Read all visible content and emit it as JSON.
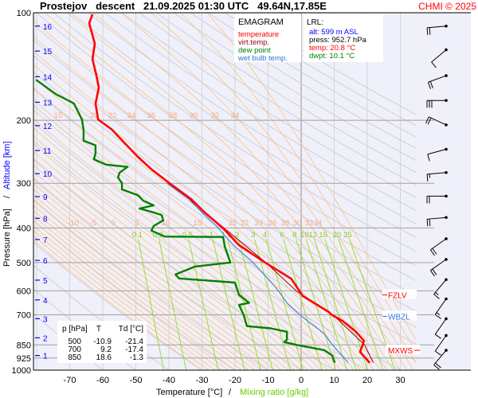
{
  "header": {
    "title": "Prostejov   descent   21.09.2025 01:30 UTC   49.64N,17.85E",
    "copyright": "CHMI © 2025"
  },
  "legend": {
    "title": "EMAGRAM",
    "items": [
      {
        "label": "temperature",
        "color": "#ff0000"
      },
      {
        "label": "virt.temp.",
        "color": "#a00000"
      },
      {
        "label": "dew point",
        "color": "#008000"
      },
      {
        "label": "wet bulb temp.",
        "color": "#3070e0"
      }
    ]
  },
  "lrl": {
    "title": "LRL:",
    "alt": "alt: 599 m ASL",
    "press": "press: 952.7 hPa",
    "temp": "temp: 20.8 °C",
    "dwpt": "dwpt: 10.1 °C"
  },
  "stats_table": {
    "headers": [
      "p [hPa]",
      "T",
      "Td [°C]"
    ],
    "rows": [
      [
        "500",
        "-10.9",
        "-21.4"
      ],
      [
        "700",
        "9.2",
        "-17.4"
      ],
      [
        "850",
        "18.6",
        "-1.3"
      ]
    ]
  },
  "chart_data": {
    "type": "line",
    "title": "Prostejov   descent   21.09.2025 01:30 UTC   49.64N,17.85E",
    "xlabel": "Temperature [°C]",
    "xlabel2": "Mixing ratio [g/kg]",
    "ylabel": "Pressure [hPa]",
    "ylabel2": "Altitude [km]",
    "xlim": [
      -81,
      33.7
    ],
    "ylim": [
      1000,
      100
    ],
    "y_scale": "log",
    "x_ticks": [
      -70,
      -60,
      -50,
      -40,
      -30,
      -20,
      -10,
      0,
      10,
      20,
      30
    ],
    "y_ticks": [
      100,
      200,
      300,
      400,
      500,
      600,
      700,
      850,
      925,
      1000
    ],
    "altitude_ticks": [
      {
        "km": "1",
        "p": 910
      },
      {
        "km": "2",
        "p": 812
      },
      {
        "km": "3",
        "p": 718
      },
      {
        "km": "4",
        "p": 636
      },
      {
        "km": "5",
        "p": 560
      },
      {
        "km": "6",
        "p": 493
      },
      {
        "km": "7",
        "p": 431
      },
      {
        "km": "8",
        "p": 376
      },
      {
        "km": "9",
        "p": 327
      },
      {
        "km": "10",
        "p": 282
      },
      {
        "km": "11",
        "p": 243
      },
      {
        "km": "12",
        "p": 207
      },
      {
        "km": "13",
        "p": 178
      },
      {
        "km": "14",
        "p": 151
      },
      {
        "km": "15",
        "p": 128
      },
      {
        "km": "16",
        "p": 109
      }
    ],
    "mixing_ratio_labels": [
      "0.1",
      "0.2",
      "0.5",
      "1",
      "1.5",
      "2",
      "3",
      "4",
      "6",
      "8",
      "10",
      "12",
      "15",
      "20",
      "25"
    ],
    "adiabat_labels_upper": [
      "15",
      "20",
      "22",
      "24",
      "26",
      "28",
      "30",
      "32",
      "34"
    ],
    "adiabat_labels_lower": [
      "-10",
      "-5",
      "0",
      "5",
      "10",
      "15",
      "20",
      "22",
      "24",
      "26",
      "28",
      "30",
      "32",
      "34"
    ],
    "series": [
      {
        "name": "temperature",
        "color": "#ff0000",
        "points": [
          [
            101,
            -63.1
          ],
          [
            107,
            -64.1
          ],
          [
            122,
            -62.4
          ],
          [
            135,
            -63.1
          ],
          [
            150,
            -61.9
          ],
          [
            162,
            -61.2
          ],
          [
            179.5,
            -62.2
          ],
          [
            199,
            -61.4
          ],
          [
            212,
            -57.3
          ],
          [
            232,
            -53.3
          ],
          [
            253,
            -49.4
          ],
          [
            274,
            -45.3
          ],
          [
            300,
            -39.8
          ],
          [
            332,
            -33.3
          ],
          [
            362,
            -29.2
          ],
          [
            401,
            -23.6
          ],
          [
            447,
            -18.8
          ],
          [
            500,
            -10.9
          ],
          [
            555,
            -3
          ],
          [
            620,
            0.5
          ],
          [
            688,
            8.4
          ],
          [
            700,
            9.2
          ],
          [
            728,
            12.5
          ],
          [
            781,
            16.6
          ],
          [
            828,
            19
          ],
          [
            850,
            18.6
          ],
          [
            889,
            17.8
          ],
          [
            948,
            20.5
          ],
          [
            952.7,
            20.8
          ]
        ]
      },
      {
        "name": "virt.temp.",
        "color": "#a00000",
        "points": [
          [
            300,
            -39.7
          ],
          [
            400,
            -23.4
          ],
          [
            500,
            -10.7
          ],
          [
            600,
            -1.5
          ],
          [
            700,
            9.6
          ],
          [
            850,
            19.2
          ],
          [
            952.7,
            21.8
          ]
        ]
      },
      {
        "name": "dew point",
        "color": "#008000",
        "points": [
          [
            154,
            -80.2
          ],
          [
            169,
            -74.2
          ],
          [
            178,
            -69.4
          ],
          [
            179.5,
            -68.7
          ],
          [
            199,
            -66.3
          ],
          [
            212.6,
            -65.8
          ],
          [
            228,
            -65.8
          ],
          [
            235,
            -62.2
          ],
          [
            248,
            -62.2
          ],
          [
            257,
            -62.7
          ],
          [
            266,
            -59
          ],
          [
            270,
            -52.5
          ],
          [
            280,
            -54.9
          ],
          [
            289,
            -55.4
          ],
          [
            300,
            -54.2
          ],
          [
            312,
            -54.2
          ],
          [
            324,
            -49.4
          ],
          [
            336,
            -47.7
          ],
          [
            346,
            -44.6
          ],
          [
            353,
            -48.9
          ],
          [
            362,
            -44.6
          ],
          [
            368,
            -42.2
          ],
          [
            381,
            -41.7
          ],
          [
            395,
            -44.6
          ],
          [
            407,
            -45.3
          ],
          [
            423,
            -41.2
          ],
          [
            424,
            -23.6
          ],
          [
            451,
            -23.1
          ],
          [
            500,
            -21.4
          ],
          [
            513,
            -32
          ],
          [
            540,
            -38
          ],
          [
            554,
            -36.9
          ],
          [
            569,
            -20
          ],
          [
            616,
            -18.8
          ],
          [
            648,
            -15.7
          ],
          [
            657,
            -18.8
          ],
          [
            700,
            -17.4
          ],
          [
            753,
            -16.4
          ],
          [
            764,
            -9.2
          ],
          [
            781,
            -4.3
          ],
          [
            822,
            -4.3
          ],
          [
            835,
            -5.1
          ],
          [
            850,
            -1.3
          ],
          [
            879,
            7
          ],
          [
            910,
            9.4
          ],
          [
            948,
            10.1
          ],
          [
            952.7,
            10.1
          ]
        ]
      },
      {
        "name": "wet bulb temp.",
        "color": "#3070e0",
        "points": [
          [
            300,
            -40.5
          ],
          [
            332,
            -34
          ],
          [
            362,
            -30
          ],
          [
            401,
            -25
          ],
          [
            447,
            -20.5
          ],
          [
            500,
            -14.5
          ],
          [
            590,
            -7.5
          ],
          [
            648,
            -4.3
          ],
          [
            690,
            -1.2
          ],
          [
            740,
            2.9
          ],
          [
            790,
            7
          ],
          [
            848,
            9.4
          ],
          [
            948,
            14
          ],
          [
            952.7,
            14.2
          ]
        ]
      }
    ],
    "levels": [
      {
        "label": "FZLV",
        "p": 616,
        "color": "#ff0000"
      },
      {
        "label": "WBZL",
        "p": 707,
        "color": "#3070e0"
      },
      {
        "label": "MXWS",
        "p": 880,
        "color": "#ff0000"
      }
    ],
    "wind_barbs_kt": [
      {
        "p": 109,
        "dir": 265,
        "speed": 20
      },
      {
        "p": 127,
        "dir": 230,
        "speed": 10
      },
      {
        "p": 150,
        "dir": 250,
        "speed": 20
      },
      {
        "p": 176,
        "dir": 270,
        "speed": 30
      },
      {
        "p": 206,
        "dir": 295,
        "speed": 20
      },
      {
        "p": 241,
        "dir": 255,
        "speed": 10
      },
      {
        "p": 280,
        "dir": 265,
        "speed": 15
      },
      {
        "p": 326,
        "dir": 270,
        "speed": 20
      },
      {
        "p": 374,
        "dir": 265,
        "speed": 20
      },
      {
        "p": 429,
        "dir": 235,
        "speed": 20
      },
      {
        "p": 490,
        "dir": 235,
        "speed": 20
      },
      {
        "p": 558,
        "dir": 220,
        "speed": 15
      },
      {
        "p": 632,
        "dir": 215,
        "speed": 15
      },
      {
        "p": 718,
        "dir": 215,
        "speed": 10
      },
      {
        "p": 800,
        "dir": 215,
        "speed": 10
      },
      {
        "p": 880,
        "dir": 220,
        "speed": 20
      }
    ],
    "grid": true,
    "legend_position": "top-center"
  }
}
